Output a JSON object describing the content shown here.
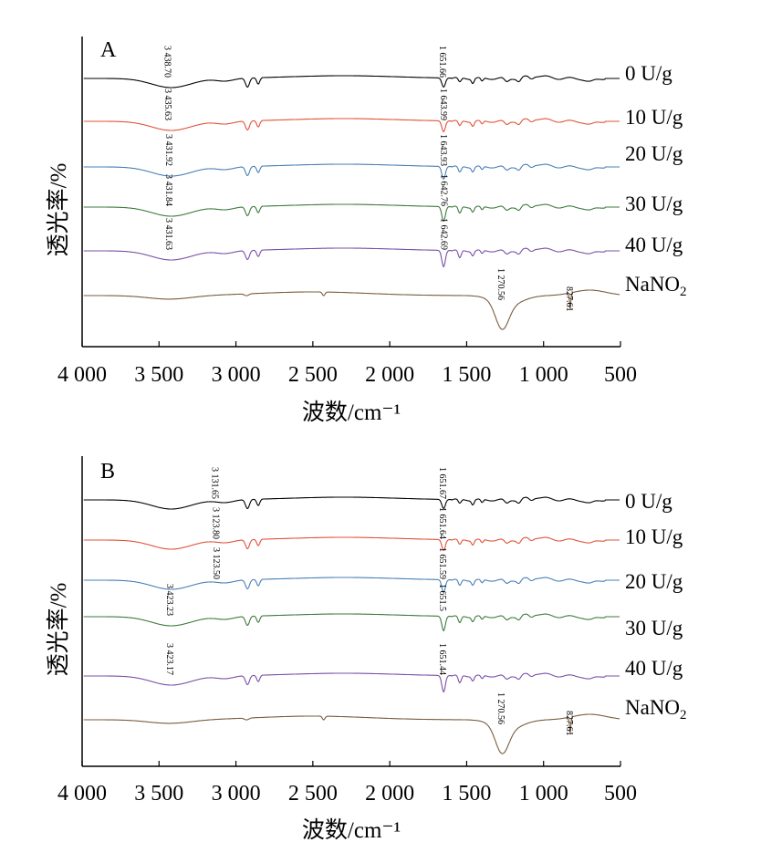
{
  "chart_data": [
    {
      "type": "line",
      "panel": "A",
      "xlabel": "波数/cm⁻¹",
      "ylabel": "透光率/%",
      "xlim": [
        4000,
        500
      ],
      "x_reversed": true,
      "x_ticks": [
        4000,
        3500,
        3000,
        2500,
        2000,
        1500,
        1000,
        500
      ],
      "x_tick_labels": [
        "4 000",
        "3 500",
        "3 000",
        "2 500",
        "2 000",
        "1 500",
        "1 000",
        "500"
      ],
      "legend_placement": "right end of each curve",
      "series": [
        {
          "name": "0 U/g",
          "color": "#000000",
          "kind": "protein",
          "annotations": [
            {
              "x": 3438.7,
              "label": "3 438.70"
            },
            {
              "x": 1651.66,
              "label": "1 651.66"
            }
          ]
        },
        {
          "name": "10 U/g",
          "color": "#e0533a",
          "kind": "protein",
          "annotations": [
            {
              "x": 3435.63,
              "label": "3 435.63"
            },
            {
              "x": 1643.99,
              "label": "1 643.99"
            }
          ]
        },
        {
          "name": "20 U/g",
          "color": "#4a7fb5",
          "kind": "protein",
          "annotations": [
            {
              "x": 3431.92,
              "label": "3 431.92"
            },
            {
              "x": 1643.93,
              "label": "1 643.93"
            }
          ]
        },
        {
          "name": "30 U/g",
          "color": "#3d7a3d",
          "kind": "protein",
          "annotations": [
            {
              "x": 3431.84,
              "label": "3 431.84"
            },
            {
              "x": 1642.76,
              "label": "1 642.76"
            }
          ]
        },
        {
          "name": "40 U/g",
          "color": "#7b4fa8",
          "kind": "protein",
          "annotations": [
            {
              "x": 3431.63,
              "label": "3 431.63"
            },
            {
              "x": 1642.69,
              "label": "1 642.69"
            }
          ]
        },
        {
          "name": "NaNO",
          "name_sub": "2",
          "color": "#7a5c3e",
          "kind": "nitrite",
          "annotations": [
            {
              "x": 1270.56,
              "label": "1 270.56"
            },
            {
              "x": 827.61,
              "label": "827.61"
            }
          ]
        }
      ]
    },
    {
      "type": "line",
      "panel": "B",
      "xlabel": "波数/cm⁻¹",
      "ylabel": "透光率/%",
      "xlim": [
        4000,
        500
      ],
      "x_reversed": true,
      "x_ticks": [
        4000,
        3500,
        3000,
        2500,
        2000,
        1500,
        1000,
        500
      ],
      "x_tick_labels": [
        "4 000",
        "3 500",
        "3 000",
        "2 500",
        "2 000",
        "1 500",
        "1 000",
        "500"
      ],
      "legend_placement": "right end of each curve",
      "series": [
        {
          "name": "0 U/g",
          "color": "#000000",
          "kind": "protein",
          "annotations": [
            {
              "x": 3131.65,
              "label": "3 131.65"
            },
            {
              "x": 1651.67,
              "label": "1 651.67"
            }
          ]
        },
        {
          "name": "10 U/g",
          "color": "#e0533a",
          "kind": "protein",
          "annotations": [
            {
              "x": 3123.8,
              "label": "3 123.80"
            },
            {
              "x": 1651.64,
              "label": "1 651.64"
            }
          ]
        },
        {
          "name": "20 U/g",
          "color": "#4a7fb5",
          "kind": "protein",
          "annotations": [
            {
              "x": 3123.5,
              "label": "3 123.50"
            },
            {
              "x": 1651.59,
              "label": "1 651.59"
            }
          ]
        },
        {
          "name": "30 U/g",
          "color": "#3d7a3d",
          "kind": "protein",
          "annotations": [
            {
              "x": 3423.23,
              "label": "3 423.23"
            },
            {
              "x": 1651.5,
              "label": "1 651.5"
            }
          ]
        },
        {
          "name": "40 U/g",
          "color": "#7b4fa8",
          "kind": "protein",
          "annotations": [
            {
              "x": 3423.17,
              "label": "3 423.17"
            },
            {
              "x": 1651.44,
              "label": "1 651.44"
            }
          ]
        },
        {
          "name": "NaNO",
          "name_sub": "2",
          "color": "#7a5c3e",
          "kind": "nitrite",
          "annotations": [
            {
              "x": 1270.56,
              "label": "1 270.56"
            },
            {
              "x": 827.61,
              "label": "827.61"
            }
          ]
        }
      ]
    }
  ]
}
